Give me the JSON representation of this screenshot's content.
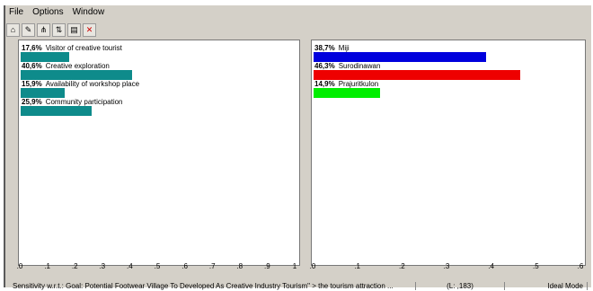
{
  "menu": [
    "File",
    "Options",
    "Window"
  ],
  "toolbar_icons": [
    "home-icon",
    "edit-icon",
    "goal-tree-icon",
    "sort-icon",
    "print-icon",
    "close-icon"
  ],
  "left_pane": {
    "items": [
      {
        "pct": "17,6%",
        "label": "Visitor of creative tourist",
        "value": 0.176
      },
      {
        "pct": "40,6%",
        "label": "Creative exploration",
        "value": 0.406
      },
      {
        "pct": "15,9%",
        "label": "Availability of  workshop place",
        "value": 0.159
      },
      {
        "pct": "25,9%",
        "label": "Community participation",
        "value": 0.259
      }
    ],
    "axis": [
      ".0",
      ".1",
      ".2",
      ".3",
      ".4",
      ".5",
      ".6",
      ".7",
      ".8",
      ".9",
      "1"
    ],
    "bar_color": "#0e8b8b"
  },
  "right_pane": {
    "items": [
      {
        "pct": "38,7%",
        "label": "Miji",
        "value": 0.387,
        "color": "#0000dd"
      },
      {
        "pct": "46,3%",
        "label": "Surodinawan",
        "value": 0.463,
        "color": "#ee0000"
      },
      {
        "pct": "14,9%",
        "label": "Prajuritkulon",
        "value": 0.149,
        "color": "#00ee00"
      }
    ],
    "axis": [
      ".0",
      ".1",
      ".2",
      ".3",
      ".4",
      ".5",
      ".6"
    ]
  },
  "status": {
    "title": "Sensitivity w.r.t.: Goal: Potential Footwear Village To Developed As Creative Industry Tourism\" > the tourism attraction ...",
    "coords": "(L: ,183)",
    "mode": "Ideal Mode"
  }
}
